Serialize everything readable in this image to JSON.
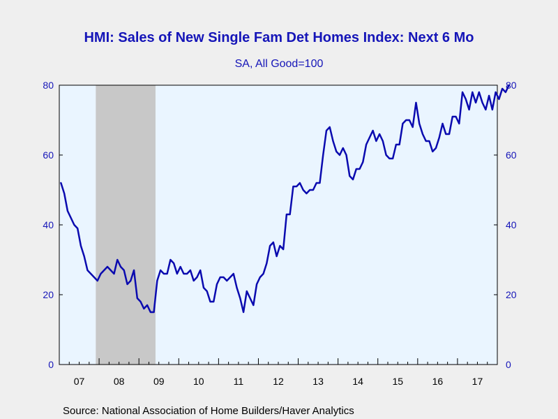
{
  "chart_data": {
    "type": "line",
    "title": "HMI: Sales of New Single Fam Det Homes Index: Next 6 Mo",
    "subtitle": "SA, All Good=100",
    "source": "Source:  National Association of Home Builders/Haver Analytics",
    "x_tick_labels": [
      "07",
      "08",
      "09",
      "10",
      "11",
      "12",
      "13",
      "14",
      "15",
      "16",
      "17"
    ],
    "y_ticks": [
      0,
      20,
      40,
      60,
      80
    ],
    "ylim": [
      0,
      80
    ],
    "xlim": [
      "2007-01",
      "2017-12"
    ],
    "grid": false,
    "recession_shading": {
      "start": "2007-12",
      "end": "2009-06",
      "color": "#c8c8c8"
    },
    "colors": {
      "line": "#0a0aaf",
      "plot_bg": "#eaf5ff",
      "text": "#1515b8"
    },
    "series": [
      {
        "start": "2007-01",
        "frequency": "monthly",
        "values": [
          52,
          49,
          44,
          42,
          40,
          39,
          34,
          31,
          27,
          26,
          25,
          24,
          26,
          27,
          28,
          27,
          26,
          30,
          28,
          27,
          23,
          24,
          27,
          19,
          18,
          16,
          17,
          15,
          15,
          24,
          27,
          26,
          26,
          30,
          29,
          26,
          28,
          26,
          26,
          27,
          24,
          25,
          27,
          22,
          21,
          18,
          18,
          23,
          25,
          25,
          24,
          25,
          26,
          22,
          19,
          15,
          21,
          19,
          17,
          23,
          25,
          26,
          29,
          34,
          35,
          31,
          34,
          33,
          43,
          43,
          51,
          51,
          52,
          50,
          49,
          50,
          50,
          52,
          52,
          60,
          67,
          68,
          64,
          61,
          60,
          62,
          60,
          54,
          53,
          56,
          56,
          58,
          63,
          65,
          67,
          64,
          66,
          64,
          60,
          59,
          59,
          63,
          63,
          69,
          70,
          70,
          68,
          75,
          69,
          66,
          64,
          64,
          61,
          62,
          65,
          69,
          66,
          66,
          71,
          71,
          69,
          78,
          76,
          73,
          78,
          75,
          78,
          75,
          73,
          77,
          73,
          78,
          76,
          79,
          78,
          80
        ]
      }
    ]
  }
}
